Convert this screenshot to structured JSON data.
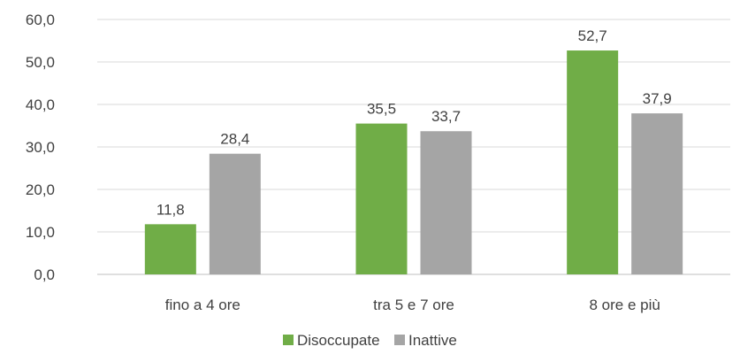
{
  "chart_data": {
    "type": "bar",
    "categories": [
      "fino a 4 ore",
      "tra 5 e 7 ore",
      "8 ore e più"
    ],
    "series": [
      {
        "name": "Disoccupate",
        "color": "#70ad47",
        "values": [
          11.8,
          35.5,
          52.7
        ]
      },
      {
        "name": "Inattive",
        "color": "#a5a5a5",
        "values": [
          28.4,
          33.7,
          37.9
        ]
      }
    ],
    "ylim": [
      0,
      60
    ],
    "yticks": [
      0,
      10,
      20,
      30,
      40,
      50,
      60
    ],
    "ytick_labels": [
      "0,0",
      "10,0",
      "20,0",
      "30,0",
      "40,0",
      "50,0",
      "60,0"
    ],
    "data_labels": [
      [
        "11,8",
        "35,5",
        "52,7"
      ],
      [
        "28,4",
        "33,7",
        "37,9"
      ]
    ],
    "gridlines": true,
    "legend_position": "bottom",
    "title": "",
    "xlabel": "",
    "ylabel": ""
  }
}
